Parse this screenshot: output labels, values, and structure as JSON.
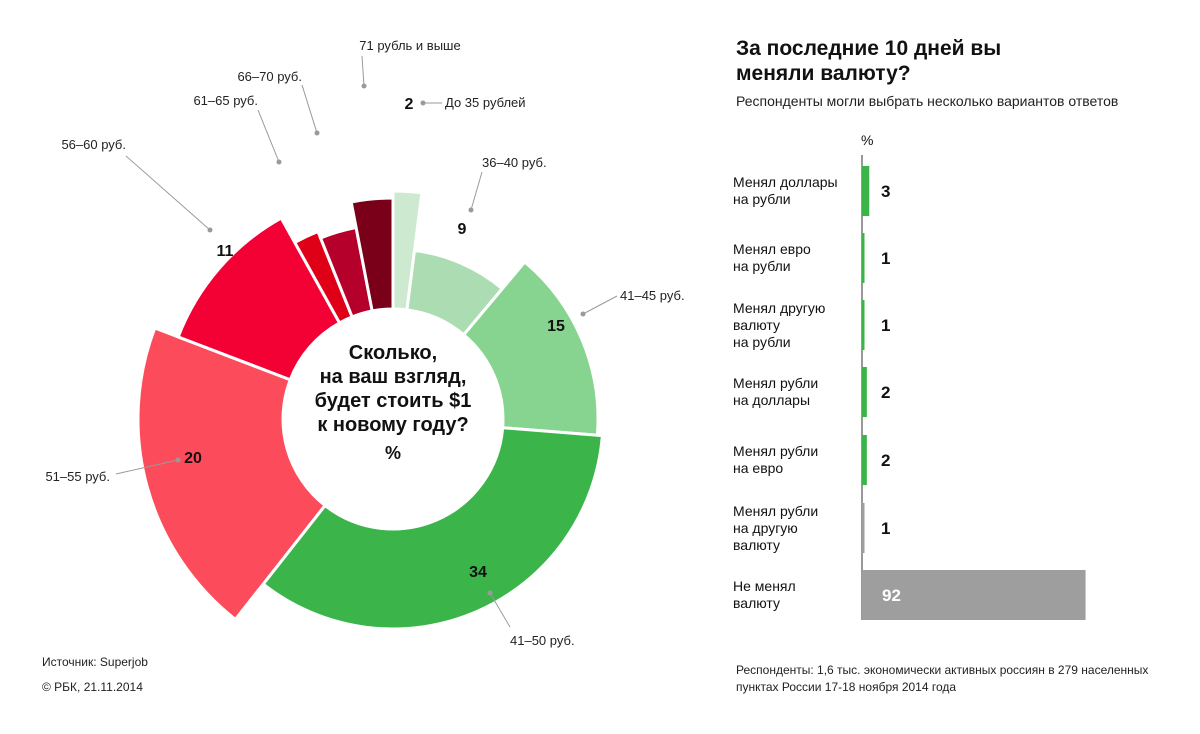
{
  "pie": {
    "center_title_lines": [
      "Сколько,",
      "на ваш взгляд,",
      "будет стоить $1",
      "к новому году?"
    ],
    "center_unit": "%"
  },
  "chart_data": [
    {
      "type": "pie",
      "title": "Сколько, на ваш взгляд, будет стоить $1 к новому году?",
      "unit": "%",
      "slices": [
        {
          "label": "До 35 рублей",
          "value": 2,
          "color": "#cde9cf"
        },
        {
          "label": "36–40 руб.",
          "value": 9,
          "color": "#acdcb2"
        },
        {
          "label": "41–45 руб.",
          "value": 15,
          "color": "#87d490"
        },
        {
          "label": "41–50 руб.",
          "value": 34,
          "color": "#3bb54a"
        },
        {
          "label": "51–55 руб.",
          "value": 20,
          "color": "#fc4c5c"
        },
        {
          "label": "56–60 руб.",
          "value": 11,
          "color": "#f30035"
        },
        {
          "label": "61–65 руб.",
          "value": 2,
          "color": "#df0018"
        },
        {
          "label": "66–70 руб.",
          "value": 3,
          "color": "#b6002c"
        },
        {
          "label": "71 рубль и выше",
          "value": 3,
          "color": "#7a001a"
        }
      ]
    },
    {
      "type": "bar",
      "orientation": "horizontal",
      "title": "За последние 10 дней вы меняли валюту?",
      "subtitle": "Респонденты могли выбрать несколько вариантов ответов",
      "unit": "%",
      "categories": [
        [
          "Менял доллары",
          "на рубли"
        ],
        [
          "Менял евро",
          "на рубли"
        ],
        [
          "Менял другую",
          "валюту",
          "на рубли"
        ],
        [
          "Менял рубли",
          "на доллары"
        ],
        [
          "Менял рубли",
          "на евро"
        ],
        [
          "Менял рубли",
          "на другую",
          "валюту"
        ],
        [
          "Не менял",
          "валюту"
        ]
      ],
      "values": [
        3,
        1,
        1,
        2,
        2,
        1,
        92
      ],
      "colors": [
        "#3bb54a",
        "#3bb54a",
        "#3bb54a",
        "#3bb54a",
        "#3bb54a",
        "#9e9e9e",
        "#9e9e9e"
      ],
      "xlim": [
        0,
        100
      ]
    }
  ],
  "notes": {
    "source": "Источник: Superjob",
    "copyright": "© РБК, 21.11.2014",
    "respondents": "Респонденты: 1,6 тыс. экономически активных россиян в 279 населенных пунктах России 17-18 ноября 2014 года"
  }
}
